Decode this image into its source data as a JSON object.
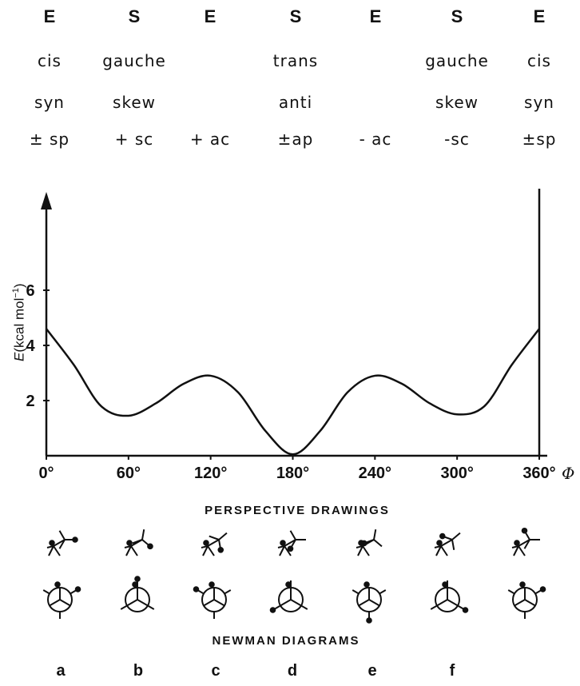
{
  "conformations": [
    {
      "type": "E",
      "name": "cis",
      "alt": "syn",
      "code": "± sp"
    },
    {
      "type": "S",
      "name": "gauche",
      "alt": "skew",
      "code": "+ sc"
    },
    {
      "type": "E",
      "name": "",
      "alt": "",
      "code": "+ ac"
    },
    {
      "type": "S",
      "name": "trans",
      "alt": "anti",
      "code": "±ap"
    },
    {
      "type": "E",
      "name": "",
      "alt": "",
      "code": "- ac"
    },
    {
      "type": "S",
      "name": "gauche",
      "alt": "skew",
      "code": "-sc"
    },
    {
      "type": "E",
      "name": "cis",
      "alt": "syn",
      "code": "±sp"
    }
  ],
  "chart_data": {
    "type": "line",
    "xlabel": "Φ",
    "ylabel": "E(kcal mol⁻¹)",
    "ylabel_parts": {
      "symbol": "E",
      "unit": "(kcal mol",
      "sup": "−1",
      "close": ")"
    },
    "xlim": [
      0,
      360
    ],
    "ylim": [
      0,
      9
    ],
    "x_ticks": [
      "0°",
      "60°",
      "120°",
      "180°",
      "240°",
      "300°",
      "360°"
    ],
    "y_ticks": [
      "2",
      "4",
      "6"
    ],
    "series": [
      {
        "x": [
          0,
          20,
          40,
          60,
          80,
          100,
          120,
          140,
          160,
          180,
          200,
          220,
          240,
          260,
          280,
          300,
          320,
          340,
          360
        ],
        "y": [
          4.6,
          3.3,
          1.8,
          1.45,
          1.9,
          2.6,
          2.9,
          2.3,
          0.9,
          0.05,
          0.9,
          2.3,
          2.9,
          2.6,
          1.9,
          1.5,
          1.8,
          3.3,
          4.6
        ]
      }
    ]
  },
  "captions": {
    "perspective": "PERSPECTIVE DRAWINGS",
    "newman": "NEWMAN DIAGRAMS"
  },
  "letters": [
    "a",
    "b",
    "c",
    "d",
    "e",
    "f"
  ]
}
